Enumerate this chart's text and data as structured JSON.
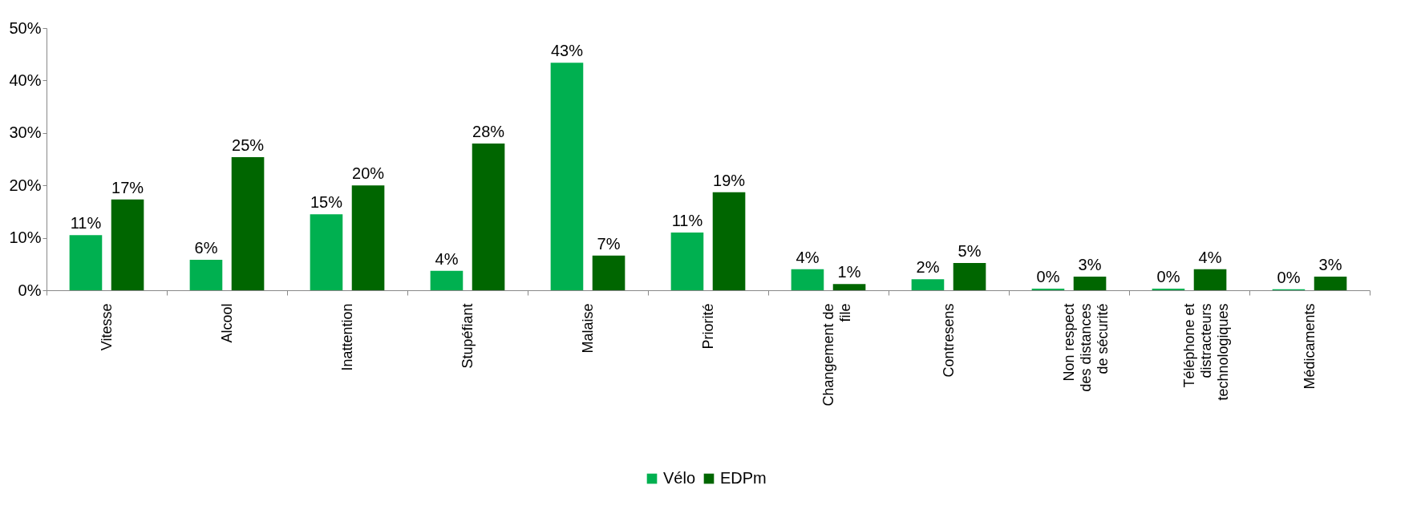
{
  "chart_data": {
    "type": "bar",
    "categories": [
      "Vitesse",
      "Alcool",
      "Inattention",
      "Stupéfiant",
      "Malaise",
      "Priorité",
      "Changement de file",
      "Contresens",
      "Non respect des distances de sécurité",
      "Téléphone et distracteurs technologiques",
      "Médicaments"
    ],
    "series": [
      {
        "name": "Vélo",
        "color": "#00b050",
        "values": [
          10.5,
          5.8,
          14.5,
          3.7,
          43.4,
          11,
          4,
          2.1,
          0.3,
          0.3,
          0.2
        ],
        "value_labels": [
          "11%",
          "6%",
          "15%",
          "4%",
          "43%",
          "11%",
          "4%",
          "2%",
          "0%",
          "0%",
          "0%"
        ]
      },
      {
        "name": "EDPm",
        "color": "#006600",
        "values": [
          17.3,
          25.4,
          20,
          28,
          6.6,
          18.7,
          1.2,
          5.2,
          2.6,
          4,
          2.6
        ],
        "value_labels": [
          "17%",
          "25%",
          "20%",
          "28%",
          "7%",
          "19%",
          "1%",
          "5%",
          "3%",
          "4%",
          "3%"
        ]
      }
    ],
    "ylim": [
      0,
      50
    ],
    "yticks": [
      {
        "value": 0,
        "label": "0%"
      },
      {
        "value": 10,
        "label": "10%"
      },
      {
        "value": 20,
        "label": "20%"
      },
      {
        "value": 30,
        "label": "30%"
      },
      {
        "value": 40,
        "label": "40%"
      },
      {
        "value": 50,
        "label": "50%"
      }
    ],
    "grid": false,
    "legend": "bottom"
  }
}
